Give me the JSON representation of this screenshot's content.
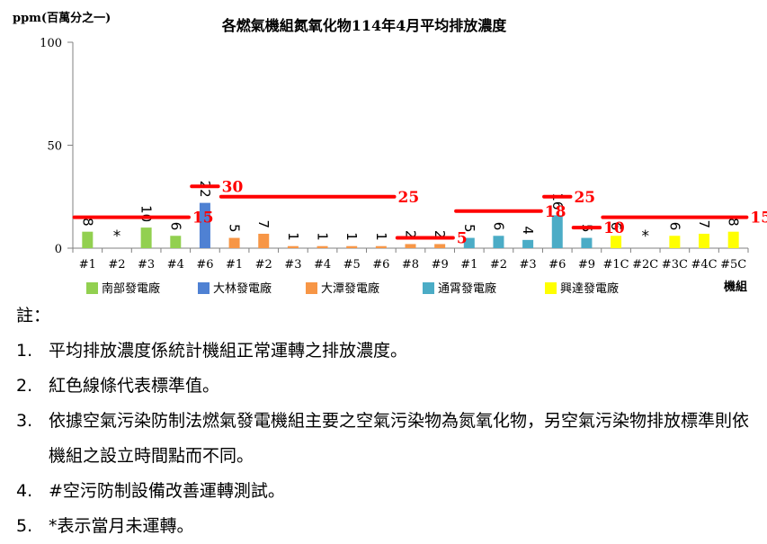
{
  "chart_data": {
    "type": "bar",
    "title": "各燃氣機組氮氧化物114年4月平均排放濃度",
    "ylabel": "ppm(百萬分之一)",
    "xlabel": "機組",
    "ylim": [
      0,
      100
    ],
    "yticks": [
      0,
      50,
      100
    ],
    "grid": false,
    "legend_position": "bottom",
    "categories": [
      "#1",
      "#2",
      "#3",
      "#4",
      "#6",
      "#1",
      "#2",
      "#3",
      "#4",
      "#5",
      "#6",
      "#8",
      "#9",
      "#1",
      "#2",
      "#3",
      "#6",
      "#9",
      "#1C",
      "#2C",
      "#3C",
      "#4C",
      "#5C"
    ],
    "plants": [
      {
        "name": "南部發電廠",
        "color": "#92D050",
        "start": 0,
        "end": 3
      },
      {
        "name": "大林發電廠",
        "color": "#4F81D3",
        "start": 4,
        "end": 4
      },
      {
        "name": "大潭發電廠",
        "color": "#F79646",
        "start": 5,
        "end": 12
      },
      {
        "name": "通霄發電廠",
        "color": "#4BACC6",
        "start": 13,
        "end": 17
      },
      {
        "name": "興達發電廠",
        "color": "#FFFF00",
        "start": 18,
        "end": 22
      }
    ],
    "values": [
      8,
      null,
      10,
      6,
      22,
      5,
      7,
      1,
      1,
      1,
      1,
      2,
      2,
      5,
      6,
      4,
      16,
      5,
      6,
      null,
      6,
      7,
      8
    ],
    "labels": [
      "8",
      "*",
      "10",
      "6",
      "22",
      "5",
      "7",
      "1",
      "1",
      "1",
      "1",
      "2",
      "2",
      "5",
      "6",
      "4",
      "16",
      "5",
      "6",
      "*",
      "6",
      "7",
      "8"
    ],
    "standards": [
      {
        "value": 15,
        "start": 0,
        "end": 3,
        "label": "15"
      },
      {
        "value": 30,
        "start": 4,
        "end": 4,
        "label": "30"
      },
      {
        "value": 25,
        "start": 5,
        "end": 10,
        "label": "25"
      },
      {
        "value": 5,
        "start": 11,
        "end": 12,
        "label": "5"
      },
      {
        "value": 18,
        "start": 13,
        "end": 15,
        "label": "18"
      },
      {
        "value": 25,
        "start": 16,
        "end": 16,
        "label": "25"
      },
      {
        "value": 10,
        "start": 17,
        "end": 17,
        "label": "10"
      },
      {
        "value": 15,
        "start": 18,
        "end": 22,
        "label": "15"
      }
    ],
    "colors": {
      "standard_line": "#FF0000",
      "axis": "#808080"
    }
  },
  "notes": {
    "heading": "註：",
    "items": [
      {
        "num": "1.",
        "text": "平均排放濃度係統計機組正常運轉之排放濃度。"
      },
      {
        "num": "2.",
        "text": "紅色線條代表標準值。"
      },
      {
        "num": "3.",
        "text": "依據空氣污染防制法燃氣發電機組主要之空氣污染物為氮氧化物，另空氣污染物排放標準則依機組之設立時間點而不同。"
      },
      {
        "num": "4.",
        "text": "#空污防制設備改善運轉測試。"
      },
      {
        "num": "5.",
        "text": "*表示當月未運轉。"
      }
    ]
  }
}
